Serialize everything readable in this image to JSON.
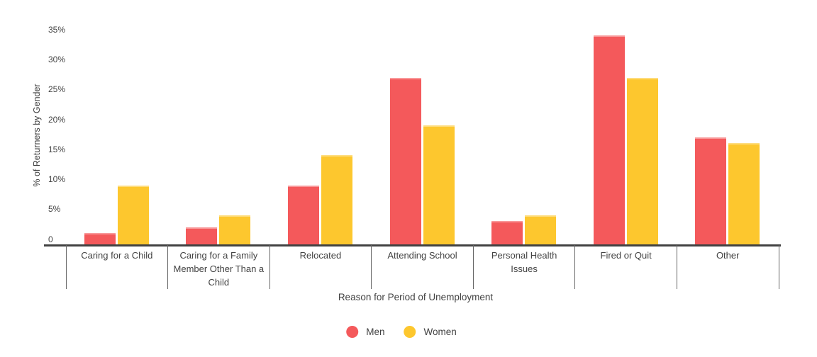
{
  "chart_data": {
    "type": "bar",
    "title": "",
    "xlabel": "Reason for Period of Unemployment",
    "ylabel": "% of Returners by Gender",
    "categories": [
      "Caring for a Child",
      "Caring for a Family Member Other Than a Child",
      "Relocated",
      "Attending School",
      "Personal Health Issues",
      "Fired or Quit",
      "Other"
    ],
    "series": [
      {
        "name": "Men",
        "color": "#f4595b",
        "values": [
          2,
          3,
          10,
          28,
          4,
          35,
          18
        ]
      },
      {
        "name": "Women",
        "color": "#fdc72e",
        "values": [
          10,
          5,
          15,
          20,
          5,
          28,
          17
        ]
      }
    ],
    "ylim": [
      0,
      35
    ],
    "yticks": [
      {
        "value": 0,
        "label": "0"
      },
      {
        "value": 5,
        "label": "5%"
      },
      {
        "value": 10,
        "label": "10%"
      },
      {
        "value": 15,
        "label": "15%"
      },
      {
        "value": 20,
        "label": "20%"
      },
      {
        "value": 25,
        "label": "25%"
      },
      {
        "value": 30,
        "label": "30%"
      },
      {
        "value": 35,
        "label": "35%"
      }
    ],
    "grid": false,
    "legend_position": "bottom",
    "colors": {
      "axis": "#424242",
      "separator": "#666666",
      "text": "#424242"
    }
  }
}
